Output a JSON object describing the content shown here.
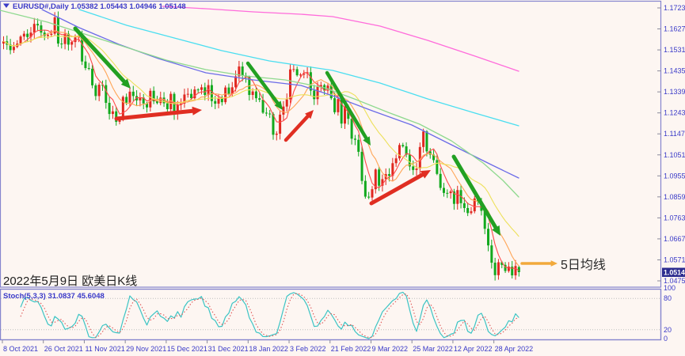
{
  "header": {
    "title": "EURUSD#,Daily  1.05382 1.05443 1.04946 1.05148",
    "symbol": "EURUSD#",
    "timeframe": "Daily"
  },
  "annotations": {
    "date_note": "2022年5月9日 欧美日K线",
    "ma_label": "5日均线"
  },
  "indicator": {
    "label": "Stoch(5,3,3) 31.0837 45.6048",
    "name": "Stoch(5,3,3)",
    "k_value": "31.0837",
    "d_value": "45.6048",
    "scale_labels": [
      "100",
      "80",
      "20",
      "0"
    ],
    "scale_values": [
      100,
      80,
      20,
      0
    ]
  },
  "price_axis": {
    "labels": [
      "1.17230",
      "1.16270",
      "1.15310",
      "1.14350",
      "1.13390",
      "1.12430",
      "1.11470",
      "1.10510",
      "1.09550",
      "1.08590",
      "1.07630",
      "1.06670",
      "1.05710",
      "1.04750"
    ],
    "current_price": "1.05148"
  },
  "time_axis": {
    "labels": [
      "8 Oct 2021",
      "26 Oct 2021",
      "11 Nov 2021",
      "29 Nov 2021",
      "15 Dec 2021",
      "31 Dec 2021",
      "18 Jan 2022",
      "3 Feb 2022",
      "21 Feb 2022",
      "9 Mar 2022",
      "25 Mar 2022",
      "12 Apr 2022",
      "28 Apr 2022"
    ],
    "bars_per_label": 12
  },
  "colors": {
    "background": "#FDF6F2",
    "panel_border": "#8585CE",
    "divider": "#C4BCE4",
    "axis_text": "#3A3AC8",
    "candle_up": "#E02820",
    "candle_down": "#12A91E",
    "ma5": "#FF4A4A",
    "ma10": "#FFA556",
    "ma20": "#EDE05A",
    "ma_long_green": "#8FD98F",
    "ma_long_blue": "#6B6BE8",
    "ma_long_cyan": "#4ADEF0",
    "ma_long_magenta": "#FF6BDB",
    "stoch_k": "#3BC4C4",
    "stoch_d": "#E05656",
    "arrow_green": "#22A022",
    "arrow_red": "#E02E22",
    "arrow_orange": "#F2A93B",
    "price_tag_bg": "#2B2B8F",
    "price_tag_text": "#FFFFFF",
    "grid_dotted": "#BDBDBD",
    "tick": "#8A8A9A"
  },
  "chart_data": {
    "type": "candlestick",
    "title": "EURUSD#,Daily",
    "x_range": [
      "8 Oct 2021",
      "9 May 2022"
    ],
    "ylim": [
      1.0446,
      1.1759
    ],
    "price_grid_step": 0.0096,
    "first_open": 1.156,
    "closes": [
      1.157,
      1.1555,
      1.153,
      1.1545,
      1.156,
      1.1592,
      1.1605,
      1.159,
      1.161,
      1.165,
      1.1643,
      1.161,
      1.1595,
      1.16,
      1.1605,
      1.168,
      1.156,
      1.1558,
      1.1605,
      1.1555,
      1.1567,
      1.1588,
      1.1593,
      1.1478,
      1.1448,
      1.1445,
      1.1369,
      1.132,
      1.1372,
      1.137,
      1.1289,
      1.1238,
      1.125,
      1.1202,
      1.121,
      1.1316,
      1.129,
      1.134,
      1.132,
      1.13,
      1.1313,
      1.1286,
      1.1268,
      1.1344,
      1.1296,
      1.1288,
      1.1313,
      1.1287,
      1.126,
      1.133,
      1.1238,
      1.1281,
      1.1286,
      1.1327,
      1.133,
      1.131,
      1.135,
      1.1348,
      1.136,
      1.1325,
      1.137,
      1.1297,
      1.1285,
      1.1312,
      1.1292,
      1.1359,
      1.133,
      1.136,
      1.141,
      1.1455,
      1.1414,
      1.1408,
      1.1325,
      1.1341,
      1.131,
      1.1303,
      1.1244,
      1.124,
      1.1238,
      1.1143,
      1.1148,
      1.1235,
      1.1272,
      1.1305,
      1.1442,
      1.1443,
      1.1415,
      1.1418,
      1.1423,
      1.1429,
      1.1345,
      1.1306,
      1.1362,
      1.137,
      1.1345,
      1.1368,
      1.131,
      1.1246,
      1.1306,
      1.1194,
      1.127,
      1.1216,
      1.1125,
      1.112,
      1.1065,
      1.0932,
      1.086,
      1.0856,
      1.0894,
      1.0984,
      1.091,
      1.094,
      1.0963,
      1.0955,
      1.1013,
      1.1035,
      1.1096,
      1.109,
      1.1052,
      1.0998,
      1.0982,
      1.0988,
      1.1087,
      1.1158,
      1.1067,
      1.1052,
      1.1027,
      1.0964,
      1.09,
      1.0877,
      1.0876,
      1.0884,
      1.0827,
      1.089,
      1.083,
      1.0808,
      1.0785,
      1.0793,
      1.0852,
      1.0838,
      1.0795,
      1.0713,
      1.0637,
      1.0558,
      1.0501,
      1.056,
      1.0548,
      1.052,
      1.054,
      1.05,
      1.0543,
      1.05148
    ],
    "last_candle": {
      "open": 1.05382,
      "high": 1.05443,
      "low": 1.04946,
      "close": 1.05148
    },
    "moving_averages_computed": [
      {
        "name": "MA5",
        "period": 5,
        "color_key": "ma5"
      },
      {
        "name": "MA10",
        "period": 10,
        "color_key": "ma10"
      },
      {
        "name": "MA20",
        "period": 20,
        "color_key": "ma20"
      }
    ],
    "long_ma_overlays": [
      {
        "name": "long-ma-magenta",
        "color_key": "ma_long_magenta",
        "points": [
          [
            205,
            1.17302
          ],
          [
            260,
            1.17194
          ],
          [
            320,
            1.17049
          ],
          [
            380,
            1.16941
          ],
          [
            420,
            1.16832
          ],
          [
            480,
            1.16398
          ],
          [
            540,
            1.15747
          ],
          [
            600,
            1.15023
          ],
          [
            655,
            1.14336
          ]
        ]
      },
      {
        "name": "long-ma-cyan",
        "color_key": "ma_long_cyan",
        "points": [
          [
            100,
            1.17158
          ],
          [
            160,
            1.16434
          ],
          [
            220,
            1.15855
          ],
          [
            280,
            1.15277
          ],
          [
            340,
            1.14806
          ],
          [
            420,
            1.14372
          ],
          [
            480,
            1.13793
          ],
          [
            540,
            1.1307
          ],
          [
            600,
            1.12419
          ],
          [
            655,
            1.1184
          ]
        ]
      },
      {
        "name": "long-ma-blue",
        "color_key": "ma_long_blue",
        "points": [
          [
            53,
            1.17158
          ],
          [
            100,
            1.16326
          ],
          [
            150,
            1.15566
          ],
          [
            200,
            1.14915
          ],
          [
            260,
            1.14264
          ],
          [
            320,
            1.13938
          ],
          [
            380,
            1.13685
          ],
          [
            420,
            1.13215
          ],
          [
            470,
            1.12527
          ],
          [
            520,
            1.11876
          ],
          [
            570,
            1.10971
          ],
          [
            620,
            1.10067
          ],
          [
            655,
            1.09452
          ]
        ]
      },
      {
        "name": "long-ma-green",
        "color_key": "ma_long_green",
        "points": [
          [
            0,
            1.17121
          ],
          [
            60,
            1.16579
          ],
          [
            110,
            1.16
          ],
          [
            160,
            1.15421
          ],
          [
            210,
            1.14843
          ],
          [
            260,
            1.14409
          ],
          [
            310,
            1.14119
          ],
          [
            360,
            1.13938
          ],
          [
            410,
            1.13577
          ],
          [
            450,
            1.13034
          ],
          [
            490,
            1.12455
          ],
          [
            530,
            1.11913
          ],
          [
            570,
            1.11153
          ],
          [
            610,
            1.1014
          ],
          [
            635,
            1.09344
          ],
          [
            655,
            1.08585
          ]
        ]
      }
    ],
    "trend_arrows": [
      {
        "color_key": "arrow_green",
        "from": [
          95,
          36
        ],
        "to": [
          165,
          112
        ],
        "width": 5
      },
      {
        "color_key": "arrow_red",
        "from": [
          147,
          150
        ],
        "to": [
          255,
          139
        ],
        "width": 5
      },
      {
        "color_key": "arrow_green",
        "from": [
          313,
          80
        ],
        "to": [
          357,
          139
        ],
        "width": 4.5
      },
      {
        "color_key": "arrow_red",
        "from": [
          361,
          177
        ],
        "to": [
          396,
          139
        ],
        "width": 4.5
      },
      {
        "color_key": "arrow_green",
        "from": [
          413,
          92
        ],
        "to": [
          468,
          184
        ],
        "width": 4.5
      },
      {
        "color_key": "arrow_red",
        "from": [
          469,
          257
        ],
        "to": [
          544,
          215
        ],
        "width": 5
      },
      {
        "color_key": "arrow_green",
        "from": [
          573,
          198
        ],
        "to": [
          632,
          298
        ],
        "width": 5
      },
      {
        "color_key": "arrow_orange",
        "from": [
          659,
          333
        ],
        "to": [
          704,
          333
        ],
        "width": 3.5
      }
    ],
    "stochastic": {
      "k_period": 5,
      "d_period": 3,
      "slowing": 3,
      "last_k": 31.0837,
      "last_d": 45.6048,
      "levels": [
        80,
        20
      ]
    }
  }
}
